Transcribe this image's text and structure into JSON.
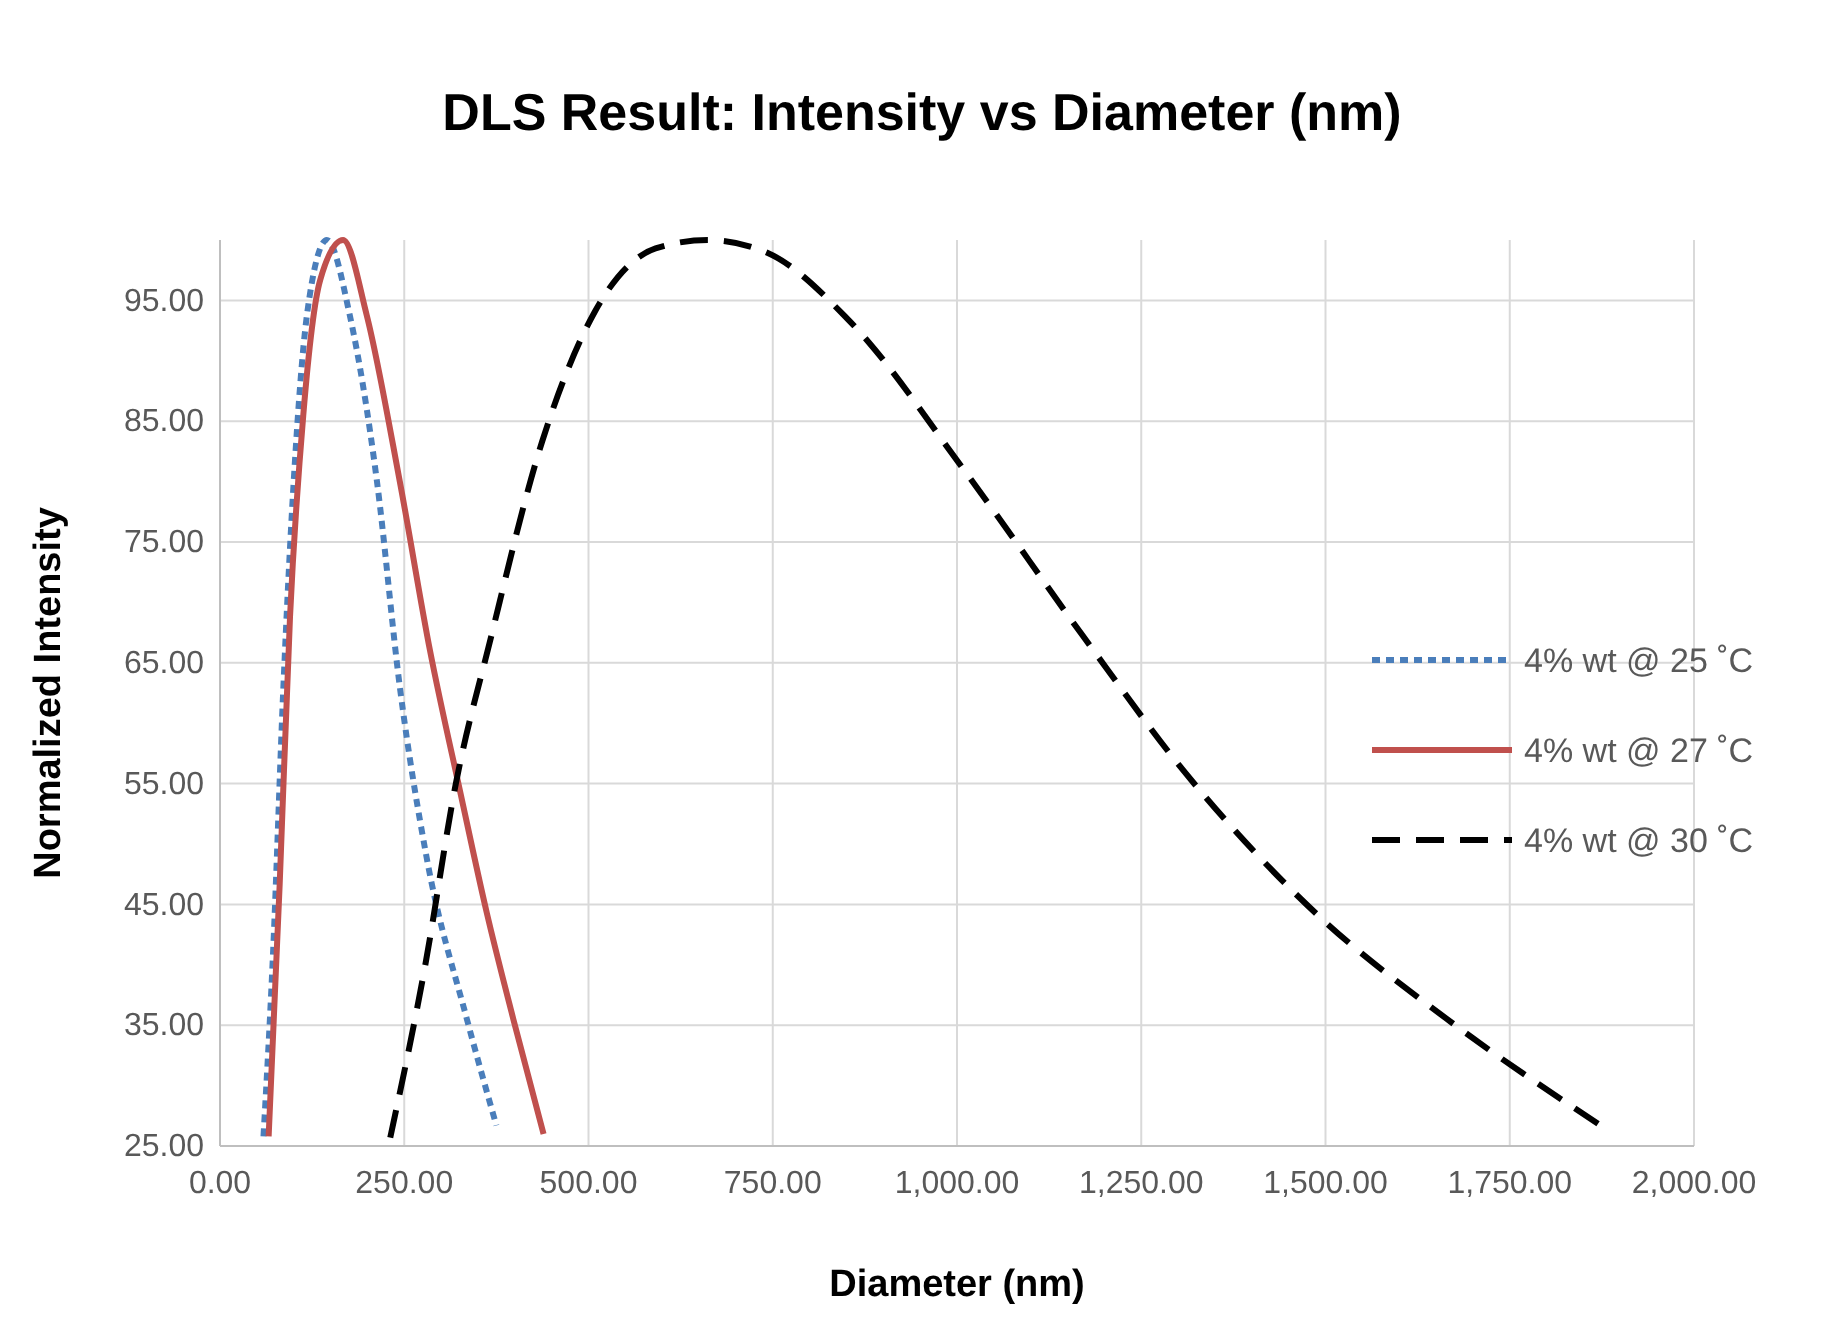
{
  "chart_data": {
    "type": "line",
    "title": "DLS Result: Intensity vs Diameter (nm)",
    "xlabel": "Diameter (nm)",
    "ylabel": "Normalized Intensity",
    "xlim": [
      0,
      2000
    ],
    "ylim": [
      25,
      100
    ],
    "xticks": [
      {
        "value": 0,
        "label": "0.00"
      },
      {
        "value": 250,
        "label": "250.00"
      },
      {
        "value": 500,
        "label": "500.00"
      },
      {
        "value": 750,
        "label": "750.00"
      },
      {
        "value": 1000,
        "label": "1,000.00"
      },
      {
        "value": 1250,
        "label": "1,250.00"
      },
      {
        "value": 1500,
        "label": "1,500.00"
      },
      {
        "value": 1750,
        "label": "1,750.00"
      },
      {
        "value": 2000,
        "label": "2,000.00"
      }
    ],
    "yticks": [
      {
        "value": 25,
        "label": "25.00"
      },
      {
        "value": 35,
        "label": "35.00"
      },
      {
        "value": 45,
        "label": "45.00"
      },
      {
        "value": 55,
        "label": "55.00"
      },
      {
        "value": 65,
        "label": "65.00"
      },
      {
        "value": 75,
        "label": "75.00"
      },
      {
        "value": 85,
        "label": "85.00"
      },
      {
        "value": 95,
        "label": "95.00"
      }
    ],
    "grid": true,
    "legend": "right",
    "marker": "none",
    "series": [
      {
        "name": "4% wt @ 25 ˚C",
        "color": "#4a7ebb",
        "line_style": "dotted",
        "x": [
          59,
          72,
          86,
          100,
          118,
          145,
          176,
          213,
          244,
          280,
          335,
          375
        ],
        "values": [
          25.8,
          41,
          63,
          80,
          93.8,
          100,
          93.8,
          80,
          63,
          49,
          35.5,
          26.7
        ]
      },
      {
        "name": "4% wt @ 27 ˚C",
        "color": "#c0504d",
        "line_style": "solid",
        "x": [
          66,
          81,
          95,
          113,
          136,
          167,
          199,
          244,
          285,
          326,
          362,
          398,
          439
        ],
        "values": [
          25.8,
          46.7,
          68.8,
          85.5,
          96.7,
          100,
          93.8,
          80,
          66,
          54.3,
          44.3,
          35.5,
          26
        ]
      },
      {
        "name": "4% wt @ 30 ˚C",
        "color": "#000000",
        "line_style": "dashed",
        "x": [
          231,
          278,
          320,
          366,
          437,
          508,
          591,
          662,
          744,
          851,
          1015,
          1170,
          1311,
          1488,
          1665,
          1871
        ],
        "values": [
          25.7,
          39.8,
          55,
          66.7,
          83.3,
          94,
          99.3,
          100,
          98.9,
          93.5,
          80.5,
          67.3,
          55.8,
          44.2,
          35.5,
          26.8
        ]
      }
    ]
  }
}
